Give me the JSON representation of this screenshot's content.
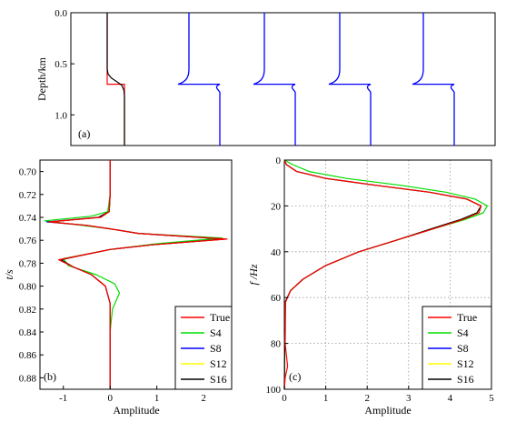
{
  "chart_data": [
    {
      "type": "line",
      "panel_label": "(a)",
      "ylabel": "Depth/km",
      "ylim": [
        0.0,
        1.3
      ],
      "ytick_labels": [
        "0.0",
        "0.5",
        "1.0"
      ],
      "series": [
        {
          "name": "True",
          "color": "#ff0000",
          "points": [
            [
              0.0,
              0.0
            ],
            [
              0.0,
              0.7
            ],
            [
              1.0,
              0.7
            ],
            [
              1.0,
              1.3
            ]
          ]
        },
        {
          "color": "#000000",
          "points": [
            [
              0.0,
              0.0
            ],
            [
              0.0,
              0.55
            ],
            [
              0.05,
              0.6
            ],
            [
              0.25,
              0.64
            ],
            [
              0.6,
              0.68
            ],
            [
              0.85,
              0.71
            ],
            [
              0.97,
              0.76
            ],
            [
              1.0,
              0.82
            ],
            [
              1.0,
              1.3
            ]
          ]
        }
      ],
      "wavelets": [
        {
          "color": "#0000ff"
        },
        {
          "color": "#0000ff"
        },
        {
          "color": "#0000ff"
        },
        {
          "color": "#0000ff"
        }
      ]
    },
    {
      "type": "line",
      "panel_label": "(b)",
      "xlabel": "Amplitude",
      "ylabel": "t/s",
      "xlim": [
        -1.5,
        2.6
      ],
      "ylim": [
        0.69,
        0.89
      ],
      "xtick_labels": [
        "-1",
        "0",
        "1",
        "2"
      ],
      "ytick_labels": [
        "0.70",
        "0.72",
        "0.74",
        "0.76",
        "0.78",
        "0.80",
        "0.82",
        "0.84",
        "0.86",
        "0.88"
      ],
      "legend_position": "bottom-right",
      "series": [
        {
          "name": "True",
          "color": "#ff0000",
          "x": [
            0.0,
            0.0,
            -0.02,
            -0.2,
            -1.3,
            -0.5,
            0.0,
            0.6,
            2.5,
            0.9,
            0.0,
            -0.6,
            -1.1,
            -0.8,
            -0.4,
            -0.1,
            0.0,
            0.0,
            0.0
          ],
          "y": [
            0.69,
            0.72,
            0.735,
            0.74,
            0.744,
            0.747,
            0.75,
            0.754,
            0.759,
            0.764,
            0.768,
            0.773,
            0.777,
            0.783,
            0.79,
            0.8,
            0.815,
            0.84,
            0.89
          ]
        },
        {
          "name": "S4",
          "color": "#00dd00",
          "x": [
            0.0,
            0.0,
            -0.05,
            -0.4,
            -1.4,
            -0.6,
            0.0,
            0.6,
            2.4,
            1.0,
            0.0,
            -0.5,
            -1.0,
            -0.9,
            -0.3,
            0.1,
            0.2,
            0.05,
            0.0,
            0.0
          ],
          "y": [
            0.69,
            0.72,
            0.735,
            0.739,
            0.743,
            0.747,
            0.75,
            0.754,
            0.758,
            0.763,
            0.768,
            0.772,
            0.776,
            0.782,
            0.79,
            0.798,
            0.806,
            0.82,
            0.84,
            0.89
          ]
        },
        {
          "name": "S8",
          "color": "#0000ff",
          "x": [
            0.0,
            0.0,
            -0.02,
            -0.25,
            -1.35,
            -0.5,
            0.0,
            0.6,
            2.45,
            0.9,
            0.0,
            -0.6,
            -1.05,
            -0.8,
            -0.4,
            -0.1,
            0.0,
            0.0,
            0.0
          ],
          "y": [
            0.69,
            0.72,
            0.735,
            0.74,
            0.744,
            0.747,
            0.75,
            0.754,
            0.759,
            0.764,
            0.768,
            0.773,
            0.777,
            0.783,
            0.79,
            0.8,
            0.815,
            0.84,
            0.89
          ]
        },
        {
          "name": "S12",
          "color": "#ffff00",
          "x": [
            0.0,
            0.0,
            -0.02,
            -0.25,
            -1.3,
            -0.5,
            0.0,
            0.6,
            2.45,
            0.9,
            0.0,
            -0.6,
            -1.05,
            -0.8,
            -0.4,
            -0.1,
            0.0,
            0.0,
            0.0
          ],
          "y": [
            0.69,
            0.72,
            0.735,
            0.74,
            0.744,
            0.747,
            0.75,
            0.754,
            0.759,
            0.764,
            0.768,
            0.773,
            0.777,
            0.783,
            0.79,
            0.8,
            0.815,
            0.84,
            0.89
          ]
        },
        {
          "name": "S16",
          "color": "#000000",
          "x": [
            0.0,
            0.0,
            -0.02,
            -0.25,
            -1.3,
            -0.5,
            0.0,
            0.6,
            2.45,
            0.9,
            0.0,
            -0.6,
            -1.05,
            -0.8,
            -0.4,
            -0.1,
            0.0,
            0.0,
            0.0
          ],
          "y": [
            0.69,
            0.72,
            0.735,
            0.74,
            0.744,
            0.747,
            0.75,
            0.754,
            0.759,
            0.764,
            0.768,
            0.773,
            0.777,
            0.783,
            0.79,
            0.8,
            0.815,
            0.84,
            0.89
          ]
        }
      ]
    },
    {
      "type": "line",
      "panel_label": "(c)",
      "xlabel": "Amplitude",
      "ylabel": "f /Hz",
      "xlim": [
        0,
        5
      ],
      "ylim": [
        0,
        100
      ],
      "xtick_labels": [
        "0",
        "1",
        "2",
        "3",
        "4",
        "5"
      ],
      "ytick_labels": [
        "0",
        "20",
        "40",
        "60",
        "80",
        "100"
      ],
      "grid": true,
      "legend_position": "bottom-right",
      "series": [
        {
          "name": "True",
          "color": "#ff0000",
          "x": [
            0.0,
            0.05,
            0.3,
            1.0,
            2.2,
            3.5,
            4.4,
            4.75,
            4.7,
            4.3,
            3.6,
            2.7,
            1.8,
            1.0,
            0.45,
            0.15,
            0.03,
            0.02,
            0.08,
            0.02,
            0.0
          ],
          "y": [
            0,
            2,
            5,
            8,
            11,
            14,
            17,
            20,
            23,
            26,
            30,
            35,
            40,
            46,
            52,
            57,
            62,
            80,
            90,
            95,
            100
          ]
        },
        {
          "name": "S4",
          "color": "#00dd00",
          "x": [
            0.0,
            0.2,
            0.6,
            1.5,
            2.8,
            3.9,
            4.6,
            4.9,
            4.8,
            4.35,
            3.6,
            2.7,
            1.8,
            1.0,
            0.45,
            0.15,
            0.02,
            0.0
          ],
          "y": [
            0,
            2,
            5,
            8,
            11,
            14,
            17,
            20,
            23,
            26,
            30,
            35,
            40,
            46,
            52,
            57,
            62,
            100
          ]
        },
        {
          "name": "S8",
          "color": "#0000ff",
          "x": [
            0.0,
            0.05,
            0.3,
            1.0,
            2.2,
            3.5,
            4.4,
            4.75,
            4.65,
            4.25,
            3.55,
            2.7,
            1.8,
            1.0,
            0.45,
            0.15,
            0.02,
            0.0
          ],
          "y": [
            0,
            2,
            5,
            8,
            11,
            14,
            17,
            20,
            23,
            26,
            30,
            35,
            40,
            46,
            52,
            57,
            62,
            100
          ]
        },
        {
          "name": "S12",
          "color": "#ffff00",
          "x": [
            0.0,
            0.05,
            0.3,
            1.0,
            2.2,
            3.5,
            4.4,
            4.75,
            4.65,
            4.25,
            3.55,
            2.7,
            1.8,
            1.0,
            0.45,
            0.15,
            0.02,
            0.0
          ],
          "y": [
            0,
            2,
            5,
            8,
            11,
            14,
            17,
            20,
            23,
            26,
            30,
            35,
            40,
            46,
            52,
            57,
            62,
            100
          ]
        },
        {
          "name": "S16",
          "color": "#000000",
          "x": [
            0.0,
            0.05,
            0.3,
            1.0,
            2.2,
            3.5,
            4.4,
            4.75,
            4.65,
            4.25,
            3.55,
            2.7,
            1.8,
            1.0,
            0.45,
            0.15,
            0.02,
            0.0
          ],
          "y": [
            0,
            2,
            5,
            8,
            11,
            14,
            17,
            20,
            23,
            26,
            30,
            35,
            40,
            46,
            52,
            57,
            62,
            100
          ]
        }
      ]
    }
  ]
}
